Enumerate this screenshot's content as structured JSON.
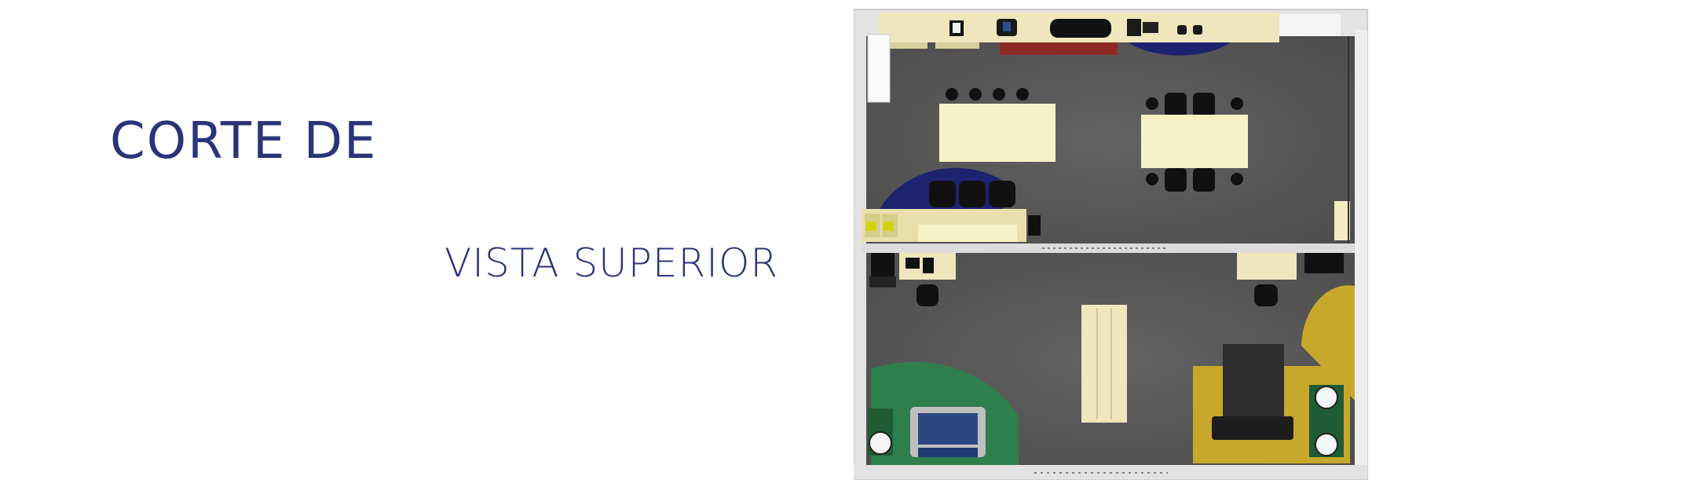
{
  "heading": {
    "title": "CORTE DE",
    "subtitle": "VISTA SUPERIOR"
  },
  "colors": {
    "title_blue": "#2b3479",
    "floor": "#5a5959",
    "wall": "#e6e6e6",
    "table_cream": "#f4f0c0",
    "rug_blue": "#1e2370",
    "rug_green": "#2f7f4d",
    "rug_yellow": "#c8a82c",
    "rug_red": "#8e2a25"
  },
  "floor_plan": {
    "rooms": [
      "upper-room",
      "lower-room"
    ],
    "icons": [
      "office-chair-icon",
      "desk-icon",
      "sofa-icon",
      "table-icon",
      "monitor-icon",
      "armchair-icon",
      "rug-icon"
    ]
  }
}
